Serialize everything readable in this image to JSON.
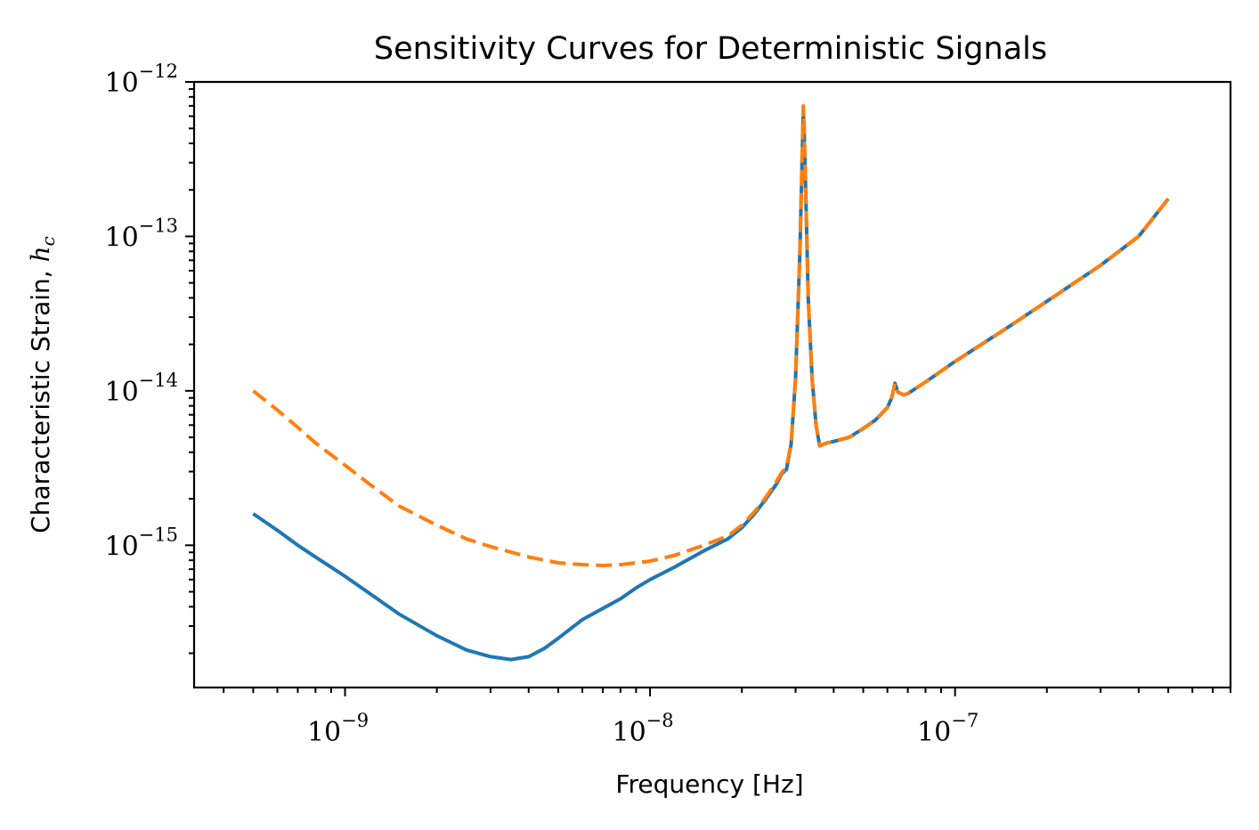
{
  "chart_data": {
    "type": "line",
    "title": "Sensitivity Curves for Deterministic Signals",
    "xlabel": "Frequency [Hz]",
    "ylabel_text": "Characteristic Strain, ",
    "ylabel_symbol": "h",
    "ylabel_subscript": "c",
    "xscale": "log",
    "yscale": "log",
    "xlim": [
      3.2e-10,
      8e-07
    ],
    "ylim": [
      1.2e-16,
      1e-12
    ],
    "grid": false,
    "x_ticks": [
      {
        "value": 1e-09,
        "base": "10",
        "exp": "−9"
      },
      {
        "value": 1e-08,
        "base": "10",
        "exp": "−8"
      },
      {
        "value": 1e-07,
        "base": "10",
        "exp": "−7"
      }
    ],
    "y_ticks": [
      {
        "value": 1e-15,
        "base": "10",
        "exp": "−15"
      },
      {
        "value": 1e-14,
        "base": "10",
        "exp": "−14"
      },
      {
        "value": 1e-13,
        "base": "10",
        "exp": "−13"
      },
      {
        "value": 1e-12,
        "base": "10",
        "exp": "−12"
      }
    ],
    "series": [
      {
        "color": "#1f77b4",
        "style": "solid",
        "points": [
          [
            5e-10,
            1.6e-15
          ],
          [
            6e-10,
            1.25e-15
          ],
          [
            7e-10,
            1e-15
          ],
          [
            8e-10,
            8.4e-16
          ],
          [
            1e-09,
            6.3e-16
          ],
          [
            1.2e-09,
            4.9e-16
          ],
          [
            1.5e-09,
            3.6e-16
          ],
          [
            2e-09,
            2.6e-16
          ],
          [
            2.5e-09,
            2.1e-16
          ],
          [
            3e-09,
            1.9e-16
          ],
          [
            3.5e-09,
            1.82e-16
          ],
          [
            4e-09,
            1.9e-16
          ],
          [
            4.5e-09,
            2.15e-16
          ],
          [
            5e-09,
            2.5e-16
          ],
          [
            6e-09,
            3.3e-16
          ],
          [
            7e-09,
            3.9e-16
          ],
          [
            8e-09,
            4.5e-16
          ],
          [
            9e-09,
            5.3e-16
          ],
          [
            1e-08,
            6e-16
          ],
          [
            1.2e-08,
            7.2e-16
          ],
          [
            1.5e-08,
            9.2e-16
          ],
          [
            1.8e-08,
            1.1e-15
          ],
          [
            2e-08,
            1.3e-15
          ],
          [
            2.2e-08,
            1.6e-15
          ],
          [
            2.4e-08,
            2e-15
          ],
          [
            2.6e-08,
            2.5e-15
          ],
          [
            2.7e-08,
            2.9e-15
          ],
          [
            2.8e-08,
            3.1e-15
          ],
          [
            2.9e-08,
            4.5e-15
          ],
          [
            3e-08,
            1.2e-14
          ],
          [
            3.1e-08,
            8e-14
          ],
          [
            3.15e-08,
            3e-13
          ],
          [
            3.18e-08,
            6.5e-13
          ],
          [
            3.2e-08,
            5e-13
          ],
          [
            3.25e-08,
            1.5e-13
          ],
          [
            3.3e-08,
            4e-14
          ],
          [
            3.4e-08,
            1.2e-14
          ],
          [
            3.5e-08,
            6e-15
          ],
          [
            3.6e-08,
            4.4e-15
          ],
          [
            3.8e-08,
            4.6e-15
          ],
          [
            4e-08,
            4.7e-15
          ],
          [
            4.5e-08,
            5e-15
          ],
          [
            5e-08,
            5.7e-15
          ],
          [
            5.5e-08,
            6.5e-15
          ],
          [
            6e-08,
            7.8e-15
          ],
          [
            6.2e-08,
            9e-15
          ],
          [
            6.35e-08,
            1.12e-14
          ],
          [
            6.5e-08,
            9.8e-15
          ],
          [
            6.8e-08,
            9.4e-15
          ],
          [
            7e-08,
            9.6e-15
          ],
          [
            8e-08,
            1.14e-14
          ],
          [
            1e-07,
            1.55e-14
          ],
          [
            1.5e-07,
            2.6e-14
          ],
          [
            2e-07,
            3.8e-14
          ],
          [
            3e-07,
            6.5e-14
          ],
          [
            4e-07,
            1e-13
          ],
          [
            5e-07,
            1.75e-13
          ]
        ]
      },
      {
        "color": "#ff7f0e",
        "style": "dashed",
        "points": [
          [
            5e-10,
            1e-14
          ],
          [
            6e-10,
            7.5e-15
          ],
          [
            7e-10,
            5.8e-15
          ],
          [
            8e-10,
            4.6e-15
          ],
          [
            1e-09,
            3.3e-15
          ],
          [
            1.2e-09,
            2.5e-15
          ],
          [
            1.5e-09,
            1.8e-15
          ],
          [
            2e-09,
            1.35e-15
          ],
          [
            2.5e-09,
            1.1e-15
          ],
          [
            3e-09,
            9.8e-16
          ],
          [
            4e-09,
            8.4e-16
          ],
          [
            5e-09,
            7.7e-16
          ],
          [
            6e-09,
            7.5e-16
          ],
          [
            7e-09,
            7.4e-16
          ],
          [
            8e-09,
            7.5e-16
          ],
          [
            1e-08,
            7.9e-16
          ],
          [
            1.2e-08,
            8.6e-16
          ],
          [
            1.5e-08,
            1e-15
          ],
          [
            1.8e-08,
            1.15e-15
          ],
          [
            2e-08,
            1.35e-15
          ],
          [
            2.2e-08,
            1.65e-15
          ],
          [
            2.4e-08,
            2.05e-15
          ],
          [
            2.6e-08,
            2.6e-15
          ],
          [
            2.7e-08,
            2.95e-15
          ],
          [
            2.8e-08,
            3.2e-15
          ],
          [
            2.9e-08,
            4.6e-15
          ],
          [
            3e-08,
            1.2e-14
          ],
          [
            3.1e-08,
            8e-14
          ],
          [
            3.15e-08,
            3.2e-13
          ],
          [
            3.18e-08,
            7e-13
          ],
          [
            3.2e-08,
            5.2e-13
          ],
          [
            3.25e-08,
            1.5e-13
          ],
          [
            3.3e-08,
            4e-14
          ],
          [
            3.4e-08,
            1.2e-14
          ],
          [
            3.5e-08,
            6e-15
          ],
          [
            3.6e-08,
            4.4e-15
          ],
          [
            3.8e-08,
            4.6e-15
          ],
          [
            4e-08,
            4.7e-15
          ],
          [
            4.5e-08,
            5e-15
          ],
          [
            5e-08,
            5.7e-15
          ],
          [
            5.5e-08,
            6.5e-15
          ],
          [
            6e-08,
            7.8e-15
          ],
          [
            6.2e-08,
            9e-15
          ],
          [
            6.35e-08,
            1.12e-14
          ],
          [
            6.5e-08,
            9.8e-15
          ],
          [
            6.8e-08,
            9.4e-15
          ],
          [
            7e-08,
            9.6e-15
          ],
          [
            8e-08,
            1.14e-14
          ],
          [
            1e-07,
            1.55e-14
          ],
          [
            1.5e-07,
            2.6e-14
          ],
          [
            2e-07,
            3.8e-14
          ],
          [
            3e-07,
            6.5e-14
          ],
          [
            4e-07,
            1e-13
          ],
          [
            5e-07,
            1.75e-13
          ]
        ]
      }
    ]
  }
}
